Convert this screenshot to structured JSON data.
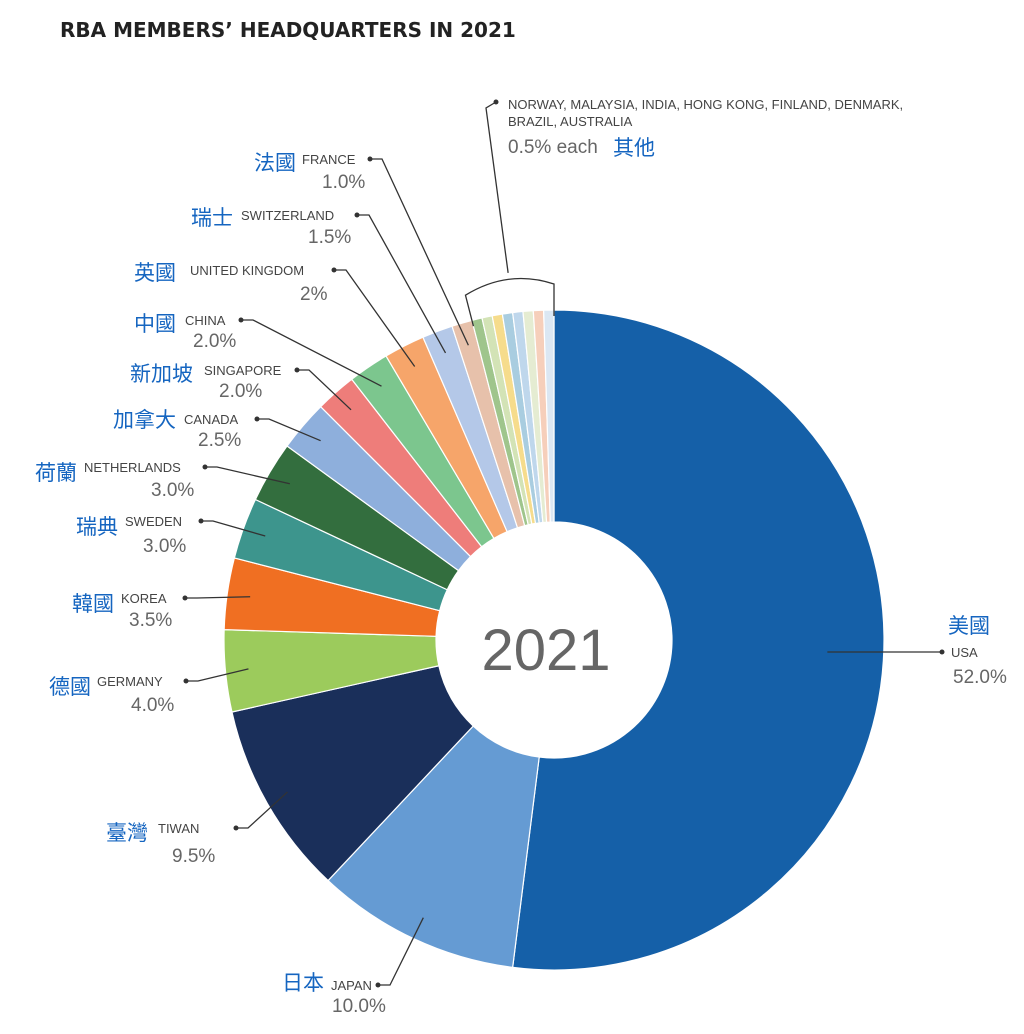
{
  "chart_data": {
    "type": "pie",
    "title": "RBA MEMBERS’ HEADQUARTERS IN 2021",
    "center_label": "2021",
    "slices": [
      {
        "name": "USA",
        "zh": "美國",
        "value_label": "52.0%",
        "value": 52.0,
        "color": "#1560a8"
      },
      {
        "name": "JAPAN",
        "zh": "日本",
        "value_label": "10.0%",
        "value": 10.0,
        "color": "#659bd3"
      },
      {
        "name": "TIWAN",
        "zh": "臺灣",
        "value_label": "9.5%",
        "value": 9.5,
        "color": "#1a2f5a"
      },
      {
        "name": "GERMANY",
        "zh": "德國",
        "value_label": "4.0%",
        "value": 4.0,
        "color": "#9ccb5c"
      },
      {
        "name": "KOREA",
        "zh": "韓國",
        "value_label": "3.5%",
        "value": 3.5,
        "color": "#f06f22"
      },
      {
        "name": "SWEDEN",
        "zh": "瑞典",
        "value_label": "3.0%",
        "value": 3.0,
        "color": "#3d958d"
      },
      {
        "name": "NETHERLANDS",
        "zh": "荷蘭",
        "value_label": "3.0%",
        "value": 3.0,
        "color": "#336e3e"
      },
      {
        "name": "CANADA",
        "zh": "加拿大",
        "value_label": "2.5%",
        "value": 2.5,
        "color": "#8eafdc"
      },
      {
        "name": "SINGAPORE",
        "zh": "新加坡",
        "value_label": "2.0%",
        "value": 2.0,
        "color": "#ee7d7a"
      },
      {
        "name": "CHINA",
        "zh": "中國",
        "value_label": "2.0%",
        "value": 2.0,
        "color": "#7cc68e"
      },
      {
        "name": "UNITED KINGDOM",
        "zh": "英國",
        "value_label": "2%",
        "value": 2.0,
        "color": "#f6a56a"
      },
      {
        "name": "SWITZERLAND",
        "zh": "瑞士",
        "value_label": "1.5%",
        "value": 1.5,
        "color": "#b4c8e8"
      },
      {
        "name": "FRANCE",
        "zh": "法國",
        "value_label": "1.0%",
        "value": 1.0,
        "color": "#e7c1ab"
      },
      {
        "name": "NORWAY",
        "zh": "",
        "value_label": "",
        "value": 0.5,
        "color": "#9fc58c"
      },
      {
        "name": "MALAYSIA",
        "zh": "",
        "value_label": "",
        "value": 0.5,
        "color": "#d3e3b6"
      },
      {
        "name": "INDIA",
        "zh": "",
        "value_label": "",
        "value": 0.5,
        "color": "#f6dc8c"
      },
      {
        "name": "HONG KONG",
        "zh": "",
        "value_label": "",
        "value": 0.5,
        "color": "#a9cde0"
      },
      {
        "name": "FINLAND",
        "zh": "",
        "value_label": "",
        "value": 0.5,
        "color": "#bfd7ec"
      },
      {
        "name": "DENMARK",
        "zh": "",
        "value_label": "",
        "value": 0.5,
        "color": "#e5ecd2"
      },
      {
        "name": "BRAZIL",
        "zh": "",
        "value_label": "",
        "value": 0.5,
        "color": "#f6cfbb"
      },
      {
        "name": "AUSTRALIA",
        "zh": "",
        "value_label": "",
        "value": 0.5,
        "color": "#dbe7f3"
      }
    ],
    "others": {
      "line1": "NORWAY, MALAYSIA, INDIA, HONG KONG, FINLAND, DENMARK,",
      "line2": "BRAZIL, AUSTRALIA",
      "value_label": "0.5% each",
      "zh": "其他"
    }
  }
}
